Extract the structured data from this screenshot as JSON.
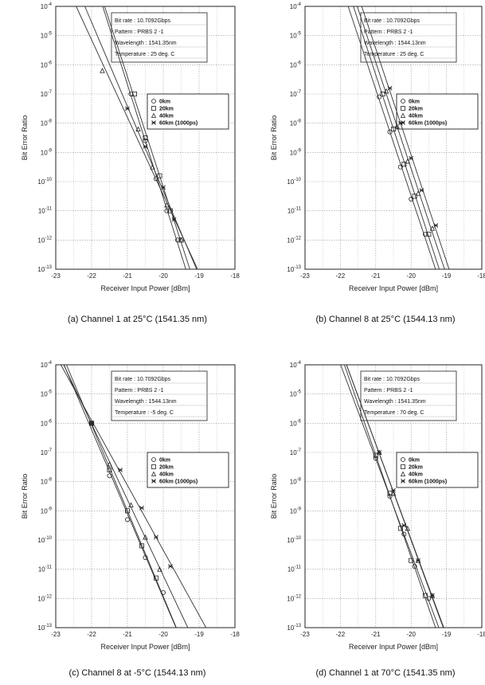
{
  "chart_data": [
    {
      "type": "line",
      "caption": "(a) Channel 1 at 25°C (1541.35 nm)",
      "xlabel": "Receiver Input Power [dBm]",
      "ylabel": "Bit Error Ratio",
      "info": [
        "Bit rate : 10.7092Gbps",
        "Pattern : PRBS 2   -1",
        "Wavelength : 1541.35nm",
        "Temperature : 25 deg. C"
      ],
      "legend": [
        "0km",
        "20km",
        "40km",
        "60km (1000ps)"
      ],
      "xlim": [
        -23,
        -18
      ],
      "ylim_exp": [
        -13,
        -4
      ],
      "series": [
        {
          "name": "0km",
          "x": [
            -20.9,
            -20.5,
            -20.2,
            -19.9,
            -19.6
          ],
          "y": [
            -7.0,
            -8.6,
            -9.9,
            -11.0,
            -12.0
          ]
        },
        {
          "name": "20km",
          "x": [
            -20.8,
            -20.5,
            -20.1,
            -19.8,
            -19.5
          ],
          "y": [
            -7.0,
            -8.5,
            -9.8,
            -11.0,
            -12.0
          ]
        },
        {
          "name": "40km",
          "x": [
            -21.7,
            -20.7,
            -20.3,
            -19.9,
            -19.5
          ],
          "y": [
            -6.2,
            -8.2,
            -9.5,
            -10.8,
            -12.0
          ]
        },
        {
          "name": "60km (1000ps)",
          "x": [
            -21.0,
            -20.5,
            -20.0,
            -19.7
          ],
          "y": [
            -7.5,
            -8.8,
            -10.2,
            -11.3
          ]
        }
      ]
    },
    {
      "type": "line",
      "caption": "(b) Channel 8 at 25°C (1544.13 nm)",
      "xlabel": "Receiver Input Power [dBm]",
      "ylabel": "Bit Error Ratio",
      "info": [
        "Bit rate : 10.7092Gbps",
        "Pattern : PRBS 2   -1",
        "Wavelength : 1544.13nm",
        "Temperature : 25 deg. C"
      ],
      "legend": [
        "0km",
        "20km",
        "40km",
        "60km (1000ps)"
      ],
      "xlim": [
        -23,
        -18
      ],
      "ylim_exp": [
        -13,
        -4
      ],
      "series": [
        {
          "name": "0km",
          "x": [
            -20.9,
            -20.6,
            -20.3,
            -20.0,
            -19.6
          ],
          "y": [
            -7.1,
            -8.3,
            -9.5,
            -10.6,
            -11.8
          ]
        },
        {
          "name": "20km",
          "x": [
            -20.8,
            -20.5,
            -20.2,
            -19.9,
            -19.5
          ],
          "y": [
            -7.0,
            -8.2,
            -9.4,
            -10.5,
            -11.8
          ]
        },
        {
          "name": "40km",
          "x": [
            -20.7,
            -20.4,
            -20.1,
            -19.8,
            -19.4
          ],
          "y": [
            -6.9,
            -8.1,
            -9.3,
            -10.4,
            -11.6
          ]
        },
        {
          "name": "60km (1000ps)",
          "x": [
            -20.6,
            -20.3,
            -20.0,
            -19.7,
            -19.3
          ],
          "y": [
            -6.8,
            -8.0,
            -9.2,
            -10.3,
            -11.5
          ]
        }
      ]
    },
    {
      "type": "line",
      "caption": "(c) Channel 8 at -5°C (1544.13 nm)",
      "xlabel": "Receiver Input Power [dBm]",
      "ylabel": "Bit Error Ratio",
      "info": [
        "Bit rate : 10.7092Gbps",
        "Pattern : PRBS 2   -1",
        "Wavelength : 1544.13nm",
        "Temperature : -5 deg. C"
      ],
      "legend": [
        "0km",
        "20km",
        "40km",
        "60km (1000ps)"
      ],
      "xlim": [
        -23,
        -18
      ],
      "ylim_exp": [
        -13,
        -4
      ],
      "series": [
        {
          "name": "0km",
          "x": [
            -22.0,
            -21.5,
            -21.0,
            -20.5,
            -20.0
          ],
          "y": [
            -6.0,
            -7.8,
            -9.3,
            -10.6,
            -11.8
          ]
        },
        {
          "name": "20km",
          "x": [
            -22.0,
            -21.5,
            -21.0,
            -20.6,
            -20.2
          ],
          "y": [
            -6.0,
            -7.6,
            -9.0,
            -10.2,
            -11.3
          ]
        },
        {
          "name": "40km",
          "x": [
            -22.0,
            -21.5,
            -20.9,
            -20.5,
            -20.1
          ],
          "y": [
            -6.0,
            -7.4,
            -8.8,
            -9.9,
            -11.0
          ]
        },
        {
          "name": "60km (1000ps)",
          "x": [
            -22.0,
            -21.2,
            -20.6,
            -20.2,
            -19.8
          ],
          "y": [
            -6.0,
            -7.6,
            -8.9,
            -9.9,
            -10.9
          ]
        }
      ]
    },
    {
      "type": "line",
      "caption": "(d) Channel 1 at 70°C (1541.35 nm)",
      "xlabel": "Receiver Input Power [dBm]",
      "ylabel": "Bit Error Ratio",
      "info": [
        "Bit rate : 10.7092Gbps",
        "Pattern : PRBS 2   -1",
        "Wavelength : 1541.35nm",
        "Temperature : 70 deg. C"
      ],
      "legend": [
        "0km",
        "20km",
        "40km",
        "60km (1000ps)"
      ],
      "xlim": [
        -23,
        -18
      ],
      "ylim_exp": [
        -13,
        -4
      ],
      "series": [
        {
          "name": "0km",
          "x": [
            -21.0,
            -20.6,
            -20.2,
            -19.9,
            -19.5
          ],
          "y": [
            -7.2,
            -8.5,
            -9.8,
            -10.9,
            -12.0
          ]
        },
        {
          "name": "20km",
          "x": [
            -21.0,
            -20.6,
            -20.3,
            -20.0,
            -19.6
          ],
          "y": [
            -7.1,
            -8.4,
            -9.6,
            -10.7,
            -11.9
          ]
        },
        {
          "name": "40km",
          "x": [
            -20.9,
            -20.5,
            -20.1,
            -19.8,
            -19.4
          ],
          "y": [
            -7.0,
            -8.4,
            -9.6,
            -10.7,
            -11.9
          ]
        },
        {
          "name": "60km (1000ps)",
          "x": [
            -20.9,
            -20.5,
            -20.2,
            -19.8,
            -19.4
          ],
          "y": [
            -7.0,
            -8.3,
            -9.5,
            -10.7,
            -11.9
          ]
        }
      ]
    }
  ]
}
